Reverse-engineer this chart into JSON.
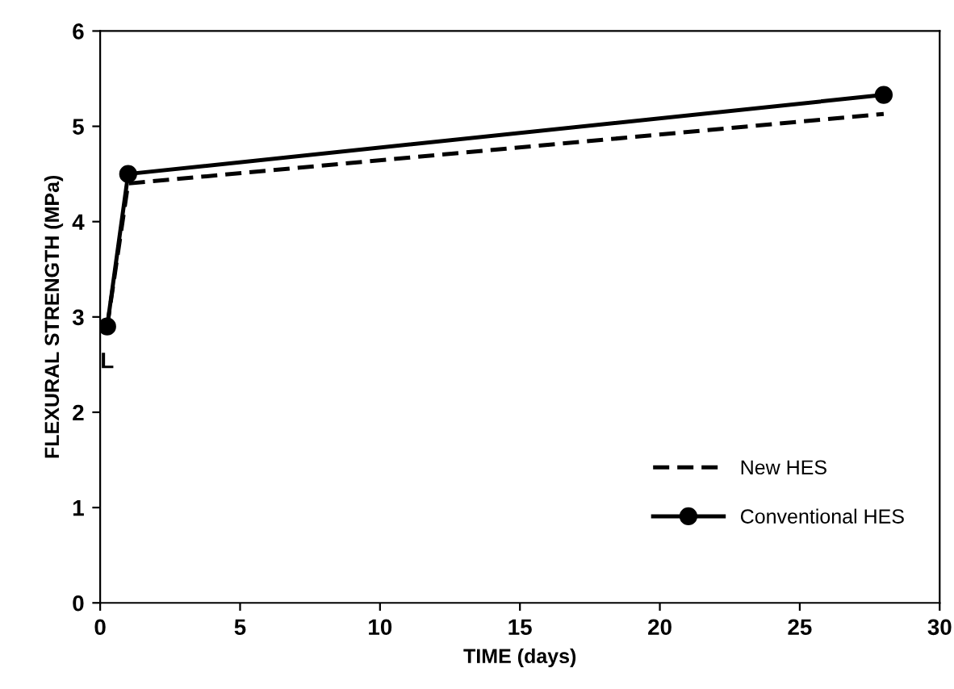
{
  "chart_data": {
    "type": "line",
    "xlabel": "TIME (days)",
    "ylabel": "FLEXURAL STRENGTH (MPa)",
    "xlim": [
      0,
      30
    ],
    "xticks": [
      0,
      5,
      10,
      15,
      20,
      25,
      30
    ],
    "ylim": [
      0,
      6
    ],
    "yticks": [
      0,
      1,
      2,
      3,
      4,
      5,
      6
    ],
    "grid": false,
    "legend": "bottom right",
    "series": [
      {
        "name": "New HES",
        "color": "#000000",
        "x": [
          0.25,
          1,
          28
        ],
        "values": [
          2.9,
          4.4,
          5.13
        ],
        "line_style": "dashed",
        "marker": "none"
      },
      {
        "name": "Conventional HES",
        "color": "#000000",
        "x": [
          0.25,
          1,
          28
        ],
        "values": [
          2.9,
          4.5,
          5.33
        ],
        "line_style": "solid",
        "marker": "circle"
      }
    ],
    "annotations": [
      {
        "text": "L",
        "x": 0.25,
        "y": 2.9
      }
    ]
  }
}
